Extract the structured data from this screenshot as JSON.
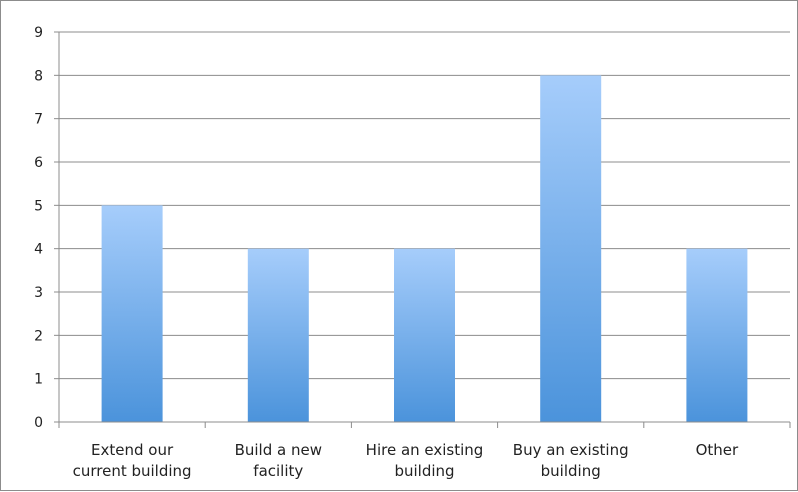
{
  "chart_data": {
    "type": "bar",
    "title": "",
    "xlabel": "",
    "ylabel": "",
    "categories": [
      [
        "Extend our",
        "current building"
      ],
      [
        "Build a new",
        "facility"
      ],
      [
        "Hire an existing",
        "building"
      ],
      [
        "Buy an existing",
        "building"
      ],
      [
        "Other"
      ]
    ],
    "values": [
      5,
      4,
      4,
      8,
      4
    ],
    "ylim": [
      0,
      9
    ],
    "yticks": [
      0,
      1,
      2,
      3,
      4,
      5,
      6,
      7,
      8,
      9
    ],
    "grid": true,
    "legend": "none",
    "colors": {
      "bar_top": "#a6cdfb",
      "bar_bottom": "#4b93db",
      "grid": "#8c8c8c",
      "axis": "#8c8c8c"
    }
  }
}
